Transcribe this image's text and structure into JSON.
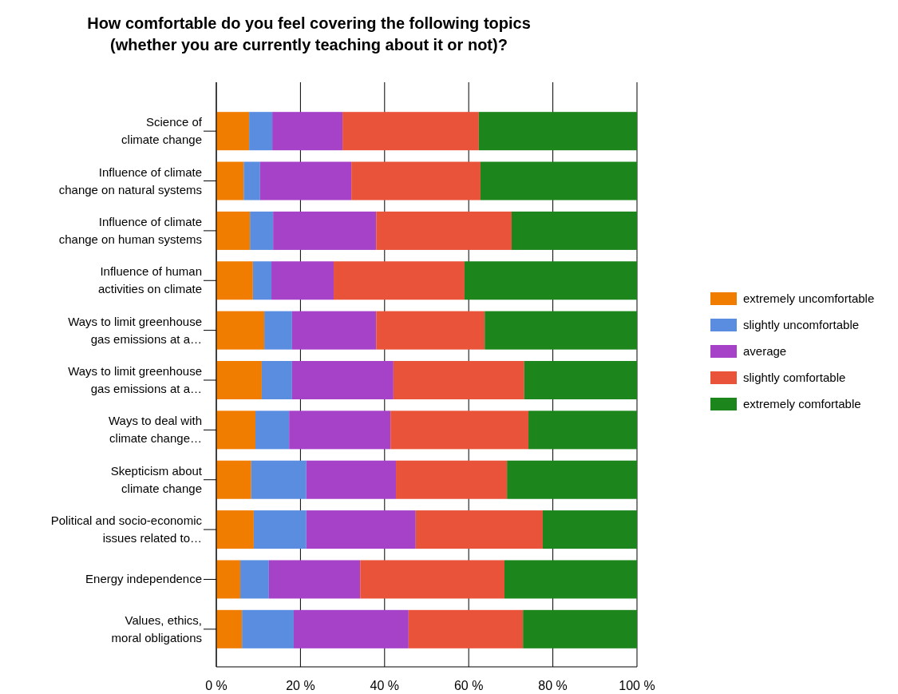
{
  "chart_data": {
    "type": "bar",
    "orientation": "horizontal",
    "stacked": true,
    "title": "How comfortable do you feel covering the following topics\n(whether you are currently teaching about it or not)?",
    "categories": [
      "Science of\nclimate change",
      "Influence of climate\nchange on natural systems",
      "Influence of climate\nchange on human systems",
      "Influence of human\nactivities on climate",
      "Ways to limit greenhouse\ngas emissions at a…",
      "Ways to limit greenhouse\ngas emissions at a…",
      "Ways to deal with\nclimate change…",
      "Skepticism about\nclimate change",
      "Political and socio-economic\nissues related to…",
      "Energy independence",
      "Values, ethics,\nmoral obligations"
    ],
    "series": [
      {
        "name": "extremely uncomfortable",
        "color": "#f07c00",
        "values": [
          7.8,
          6.5,
          8.0,
          8.7,
          11.4,
          10.8,
          9.3,
          8.3,
          8.9,
          5.7,
          6.1
        ]
      },
      {
        "name": "slightly uncomfortable",
        "color": "#5a8de0",
        "values": [
          5.5,
          3.9,
          5.5,
          4.4,
          6.6,
          7.2,
          8.0,
          13.1,
          12.5,
          6.8,
          12.3
        ]
      },
      {
        "name": "average",
        "color": "#a642c8",
        "values": [
          16.7,
          21.7,
          24.5,
          14.8,
          20.0,
          24.1,
          24.1,
          21.3,
          26.0,
          21.7,
          27.3
        ]
      },
      {
        "name": "slightly comfortable",
        "color": "#e8533a",
        "values": [
          32.4,
          30.7,
          32.2,
          31.1,
          25.8,
          31.1,
          32.8,
          26.4,
          30.2,
          34.3,
          27.2
        ]
      },
      {
        "name": "extremely comfortable",
        "color": "#1c861c",
        "values": [
          37.6,
          37.2,
          29.8,
          41.0,
          36.2,
          26.8,
          25.8,
          30.9,
          22.4,
          31.5,
          27.1
        ]
      }
    ],
    "xlim": [
      0,
      100
    ],
    "xticks": [
      {
        "value": 0,
        "label": "0 %"
      },
      {
        "value": 20,
        "label": "20 %"
      },
      {
        "value": 40,
        "label": "40 %"
      },
      {
        "value": 60,
        "label": "60 %"
      },
      {
        "value": 80,
        "label": "80 %"
      },
      {
        "value": 100,
        "label": "100 %"
      }
    ],
    "grid": "x",
    "legend": "right"
  }
}
